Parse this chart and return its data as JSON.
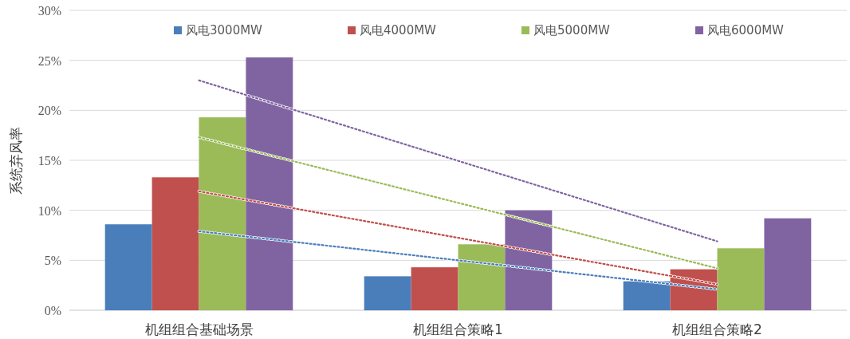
{
  "chart_data": {
    "type": "bar",
    "ylabel": "系统弃风率",
    "categories": [
      "机组组合基础场景",
      "机组组合策略1",
      "机组组合策略2"
    ],
    "series": [
      {
        "name": "风电3000MW",
        "color": "#4a7ebb",
        "values": [
          8.6,
          3.4,
          2.9
        ]
      },
      {
        "name": "风电4000MW",
        "color": "#c0504d",
        "values": [
          13.3,
          4.3,
          4.1
        ]
      },
      {
        "name": "风电5000MW",
        "color": "#9bbb59",
        "values": [
          19.3,
          6.6,
          6.2
        ]
      },
      {
        "name": "风电6000MW",
        "color": "#8064a2",
        "values": [
          25.3,
          10.0,
          9.2
        ]
      },
      {
        "type": "line",
        "line_style": "dotted",
        "color": "#4a7ebb",
        "x": [
          "机组组合基础场景",
          "机组组合策略2"
        ],
        "values": [
          7.9,
          2.1
        ]
      },
      {
        "type": "line",
        "line_style": "dotted",
        "color": "#c0504d",
        "x": [
          "机组组合基础场景",
          "机组组合策略2"
        ],
        "values": [
          11.9,
          2.6
        ]
      },
      {
        "type": "line",
        "line_style": "dotted",
        "color": "#9bbb59",
        "x": [
          "机组组合基础场景",
          "机组组合策略2"
        ],
        "values": [
          17.3,
          4.2
        ]
      },
      {
        "type": "line",
        "line_style": "dotted",
        "color": "#8064a2",
        "x": [
          "机组组合基础场景",
          "机组组合策略2"
        ],
        "values": [
          23.0,
          6.9
        ]
      }
    ],
    "ylim": [
      0,
      30
    ],
    "yticks": [
      {
        "value": 0,
        "label": "0%"
      },
      {
        "value": 5,
        "label": "5%"
      },
      {
        "value": 10,
        "label": "10%"
      },
      {
        "value": 15,
        "label": "15%"
      },
      {
        "value": 20,
        "label": "20%"
      },
      {
        "value": 25,
        "label": "25%"
      },
      {
        "value": 30,
        "label": "30%"
      }
    ],
    "grid": "y",
    "legend": "top"
  }
}
